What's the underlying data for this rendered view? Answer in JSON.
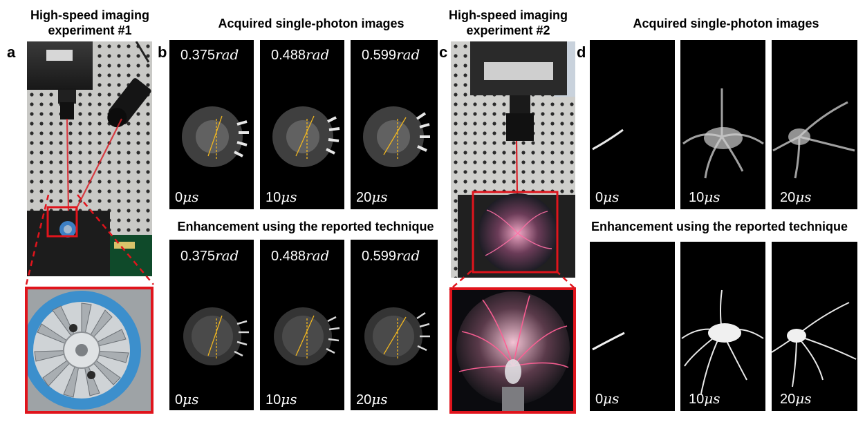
{
  "panel_labels": {
    "a": "a",
    "b": "b",
    "c": "c",
    "d": "d"
  },
  "exp1": {
    "title_line1": "High-speed imaging",
    "title_line2": "experiment #1"
  },
  "exp2": {
    "title_line1": "High-speed imaging",
    "title_line2": "experiment #2"
  },
  "headings": {
    "acquired_b": "Acquired single-photon images",
    "enhanced_b": "Enhancement using the reported technique",
    "acquired_d": "Acquired single-photon images",
    "enhanced_d": "Enhancement using the reported technique"
  },
  "panel_b": {
    "frames": [
      {
        "angle_num": "0.375",
        "angle_unit": "rad",
        "time_num": "0",
        "time_unit": "μs"
      },
      {
        "angle_num": "0.488",
        "angle_unit": "rad",
        "time_num": "10",
        "time_unit": "μs"
      },
      {
        "angle_num": "0.599",
        "angle_unit": "rad",
        "time_num": "20",
        "time_unit": "μs"
      }
    ]
  },
  "panel_d": {
    "frames": [
      {
        "time_num": "0",
        "time_unit": "μs"
      },
      {
        "time_num": "10",
        "time_unit": "μs"
      },
      {
        "time_num": "20",
        "time_unit": "μs"
      }
    ]
  },
  "colors": {
    "accent_red": "#e0141c",
    "guide_yellow": "#f2b71f",
    "laser_red": "#d9222a"
  }
}
